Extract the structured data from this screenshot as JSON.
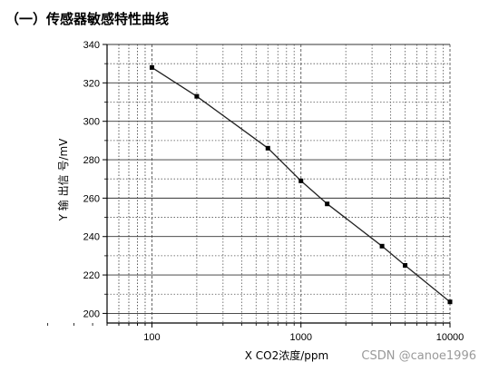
{
  "page": {
    "heading": "（一）传感器敏感特性曲线",
    "watermark": "CSDN @canoe1996"
  },
  "chart_data": {
    "type": "line",
    "xscale": "log",
    "xlim": [
      50,
      10000
    ],
    "ylim": [
      195,
      340
    ],
    "xlabel": "X CO2浓度/ppm",
    "ylabel": "Y 输 出信 号/mV",
    "xticks": [
      "100",
      "1000",
      "10000"
    ],
    "yticks": [
      "200",
      "220",
      "240",
      "260",
      "280",
      "300",
      "320",
      "340"
    ],
    "grid": true,
    "series": [
      {
        "marker": "square",
        "x": [
          100,
          200,
          600,
          1000,
          1500,
          3500,
          5000,
          10000
        ],
        "y": [
          328,
          313,
          286,
          269,
          257,
          235,
          225,
          206
        ]
      }
    ],
    "colors": {
      "line": "#222222",
      "grid": "#555555",
      "axis": "#000000"
    }
  }
}
